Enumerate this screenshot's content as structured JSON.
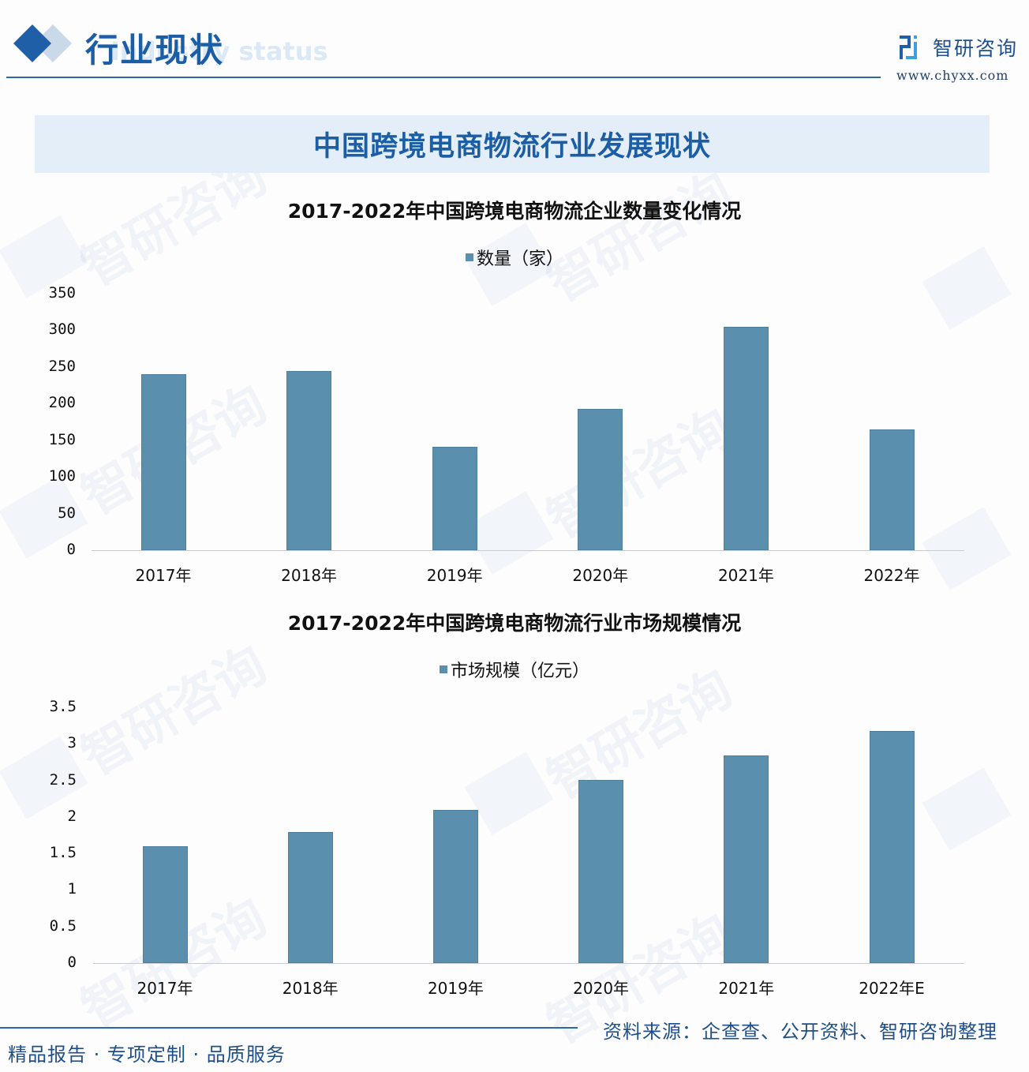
{
  "header": {
    "title": "行业现状",
    "ghost_text": "Industry status",
    "brand_name": "智研咨询",
    "brand_url": "www.chyxx.com",
    "accent_color": "#1b5ea6"
  },
  "banner": {
    "title": "中国跨境电商物流行业发展现状"
  },
  "charts": [
    {
      "title": "2017-2022年中国跨境电商物流企业数量变化情况",
      "legend": "数量（家）",
      "yticks": [
        "350",
        "300",
        "250",
        "200",
        "150",
        "100",
        "50",
        "0"
      ],
      "xticks": [
        "2017年",
        "2018年",
        "2019年",
        "2020年",
        "2021年",
        "2022年"
      ]
    },
    {
      "title": "2017-2022年中国跨境电商物流行业市场规模情况",
      "legend": "市场规模（亿元）",
      "yticks": [
        "3.5",
        "3",
        "2.5",
        "2",
        "1.5",
        "1",
        "0.5",
        "0"
      ],
      "xticks": [
        "2017年",
        "2018年",
        "2019年",
        "2020年",
        "2021年",
        "2022年E"
      ]
    }
  ],
  "footer": {
    "slogan": "精品报告 · 专项定制 · 品质服务",
    "source": "资料来源：企查查、公开资料、智研咨询整理"
  },
  "chart_data": [
    {
      "type": "bar",
      "title": "2017-2022年中国跨境电商物流企业数量变化情况",
      "categories": [
        "2017年",
        "2018年",
        "2019年",
        "2020年",
        "2021年",
        "2022年"
      ],
      "series": [
        {
          "name": "数量（家）",
          "values": [
            240,
            244,
            141,
            193,
            305,
            165
          ],
          "color": "#5b8fae"
        }
      ],
      "xlabel": "",
      "ylabel": "",
      "ylim": [
        0,
        350
      ],
      "yticks": [
        0,
        50,
        100,
        150,
        200,
        250,
        300,
        350
      ],
      "grid": false,
      "legend_position": "top"
    },
    {
      "type": "bar",
      "title": "2017-2022年中国跨境电商物流行业市场规模情况",
      "categories": [
        "2017年",
        "2018年",
        "2019年",
        "2020年",
        "2021年",
        "2022年E"
      ],
      "series": [
        {
          "name": "市场规模（亿元）",
          "values": [
            1.6,
            1.79,
            2.1,
            2.51,
            2.84,
            3.18
          ],
          "color": "#5b8fae"
        }
      ],
      "xlabel": "",
      "ylabel": "",
      "ylim": [
        0,
        3.5
      ],
      "yticks": [
        0,
        0.5,
        1,
        1.5,
        2,
        2.5,
        3,
        3.5
      ],
      "grid": false,
      "legend_position": "top"
    }
  ]
}
